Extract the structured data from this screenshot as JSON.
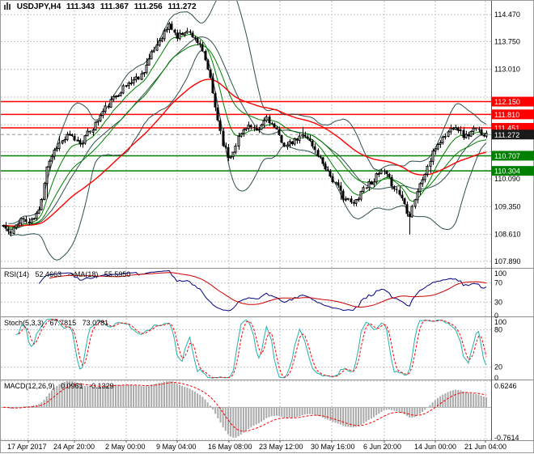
{
  "window": {
    "symbol_title": "USDJPY,H4",
    "open": "111.343",
    "high": "111.367",
    "low": "111.256",
    "close": "111.272"
  },
  "colors": {
    "background": "#ffffff",
    "grid": "#c4c4c4",
    "panel_border": "#8c8c8c",
    "axis_text": "#000000",
    "bull": "#ffffff",
    "bear": "#000000",
    "candle_outline": "#000000",
    "bands": "#2f4f4f",
    "ma_red": "#ff0000",
    "ma_green": "#008000",
    "level_red": "#ff0000",
    "level_green": "#008000",
    "current_price_bg": "#1a1a1a",
    "rsi_line": "#000080",
    "rsi_ma_line": "#cc0000",
    "stoch_line": "#20b2aa",
    "stoch_signal": "#ff0000",
    "macd_hist": "#a9a9a9",
    "macd_signal": "#ff0000",
    "zero_line": "#b0b0b0"
  },
  "chart_data": {
    "type": "candlestick",
    "symbol": "USDJPY",
    "timeframe": "H4",
    "ohlc_display": {
      "open": 111.343,
      "high": 111.367,
      "low": 111.256,
      "close": 111.272
    },
    "price_axis": {
      "y_max": 114.837,
      "y_min": 107.718,
      "ticks": [
        {
          "v": 114.47,
          "label": "114.470"
        },
        {
          "v": 113.75,
          "label": "113.750"
        },
        {
          "v": 113.01,
          "label": "113.010"
        },
        {
          "v": 112.27,
          "label": ""
        },
        {
          "v": 111.53,
          "label": ""
        },
        {
          "v": 110.81,
          "label": ""
        },
        {
          "v": 110.09,
          "label": "110.090"
        },
        {
          "v": 109.35,
          "label": "109.350"
        },
        {
          "v": 108.61,
          "label": "108.610"
        },
        {
          "v": 107.89,
          "label": "107.890"
        }
      ]
    },
    "time_axis": {
      "labels": [
        {
          "text": "17 Apr 2017",
          "x": 0.013
        },
        {
          "text": "24 Apr 20:00",
          "x": 0.107
        },
        {
          "text": "2 May 00:00",
          "x": 0.213
        },
        {
          "text": "9 May 04:00",
          "x": 0.317
        },
        {
          "text": "16 May 08:00",
          "x": 0.422
        },
        {
          "text": "23 May 12:00",
          "x": 0.527
        },
        {
          "text": "30 May 16:00",
          "x": 0.632
        },
        {
          "text": "6 Jun 20:00",
          "x": 0.74
        },
        {
          "text": "14 Jun 00:00",
          "x": 0.843
        },
        {
          "text": "21 Jun 04:00",
          "x": 0.945
        }
      ]
    },
    "levels": [
      {
        "price": 112.15,
        "label": "112.150",
        "color": "red"
      },
      {
        "price": 111.81,
        "label": "111.810",
        "color": "red"
      },
      {
        "price": 111.451,
        "label": "111.451",
        "color": "red"
      },
      {
        "price": 110.707,
        "label": "110.707",
        "color": "green"
      },
      {
        "price": 110.304,
        "label": "110.304",
        "color": "green"
      }
    ],
    "current_price": {
      "value": 111.272,
      "label": "111.272"
    },
    "candles_count": 190,
    "noise_seed": 11,
    "noise_amp": 0.085,
    "series_anchors": [
      [
        0.0,
        108.85
      ],
      [
        0.015,
        108.6
      ],
      [
        0.035,
        109.05
      ],
      [
        0.055,
        108.9
      ],
      [
        0.075,
        109.25
      ],
      [
        0.09,
        110.45
      ],
      [
        0.11,
        110.95
      ],
      [
        0.135,
        111.25
      ],
      [
        0.16,
        111.05
      ],
      [
        0.185,
        111.45
      ],
      [
        0.21,
        111.95
      ],
      [
        0.235,
        112.35
      ],
      [
        0.26,
        112.65
      ],
      [
        0.285,
        112.85
      ],
      [
        0.305,
        113.35
      ],
      [
        0.325,
        113.85
      ],
      [
        0.345,
        114.2
      ],
      [
        0.36,
        113.85
      ],
      [
        0.375,
        114.05
      ],
      [
        0.395,
        113.9
      ],
      [
        0.41,
        113.55
      ],
      [
        0.425,
        112.95
      ],
      [
        0.44,
        111.95
      ],
      [
        0.455,
        111.05
      ],
      [
        0.468,
        110.6
      ],
      [
        0.485,
        111.15
      ],
      [
        0.505,
        111.55
      ],
      [
        0.525,
        111.3
      ],
      [
        0.545,
        111.75
      ],
      [
        0.565,
        111.35
      ],
      [
        0.585,
        110.95
      ],
      [
        0.605,
        111.1
      ],
      [
        0.625,
        111.3
      ],
      [
        0.645,
        110.85
      ],
      [
        0.665,
        110.45
      ],
      [
        0.685,
        110.0
      ],
      [
        0.705,
        109.6
      ],
      [
        0.725,
        109.4
      ],
      [
        0.745,
        109.85
      ],
      [
        0.765,
        110.05
      ],
      [
        0.785,
        110.3
      ],
      [
        0.805,
        109.95
      ],
      [
        0.825,
        109.6
      ],
      [
        0.84,
        109.1
      ],
      [
        0.855,
        109.7
      ],
      [
        0.875,
        110.3
      ],
      [
        0.895,
        110.95
      ],
      [
        0.915,
        111.25
      ],
      [
        0.935,
        111.55
      ],
      [
        0.955,
        111.2
      ],
      [
        0.975,
        111.4
      ],
      [
        1.0,
        111.27
      ]
    ],
    "spikes": [
      {
        "x": 0.09,
        "ext": 0.3
      },
      {
        "x": 0.7,
        "ext": 0.22
      },
      {
        "x": 0.842,
        "ext": 0.4
      }
    ],
    "overlays": {
      "bollinger": {
        "period": 20,
        "deviation": 2
      },
      "ma_red_period": 55,
      "ma_green_periods": [
        9,
        21
      ]
    },
    "indicators": {
      "rsi": {
        "name": "RSI(14)",
        "value": "52.4663",
        "ma_name": "->MA(18)",
        "ma_value": "55.5950",
        "period": 14,
        "ma_period": 18,
        "levels": [
          70,
          30
        ],
        "axis": [
          {
            "v": 100,
            "label": "100"
          },
          {
            "v": 70,
            "label": "70"
          },
          {
            "v": 30,
            "label": "30"
          },
          {
            "v": 0,
            "label": "0"
          }
        ]
      },
      "stoch": {
        "name": "Stoch(5,3,3)",
        "value": "67.7815",
        "signal_value": "73.0781",
        "k": 5,
        "d": 3,
        "slowing": 3,
        "levels": [
          80,
          20
        ],
        "axis": [
          {
            "v": 100,
            "label": "100"
          },
          {
            "v": 80,
            "label": "80"
          },
          {
            "v": 20,
            "label": "20"
          },
          {
            "v": 0,
            "label": "0"
          }
        ]
      },
      "macd": {
        "name": "MACD(12,26,9)",
        "value": "0.0961",
        "signal_value": "-0.1329",
        "fast": 12,
        "slow": 26,
        "signal": 9,
        "axis_max": 0.6246,
        "axis_min": -0.7614,
        "axis": [
          {
            "v": 0.6246,
            "label": "0.6246"
          },
          {
            "v": -0.7614,
            "label": "-0.7614"
          }
        ]
      }
    }
  }
}
